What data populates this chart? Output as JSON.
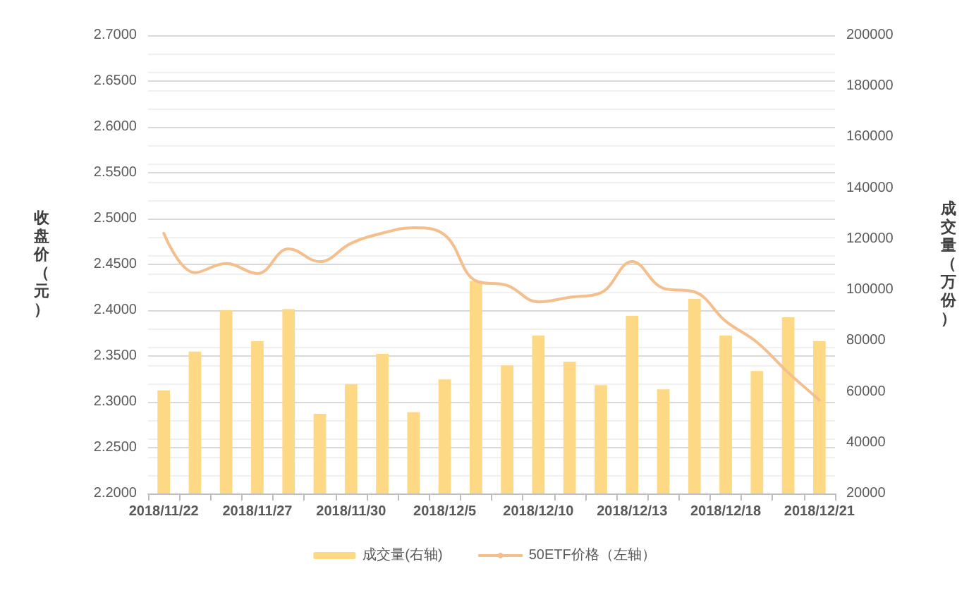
{
  "chart_data": {
    "type": "bar",
    "ylabel": "收盘价（元）",
    "y2label": "成交量（万份）",
    "categories": [
      "2018/11/22",
      null,
      null,
      "2018/11/27",
      null,
      null,
      "2018/11/30",
      null,
      null,
      "2018/12/5",
      null,
      null,
      "2018/12/10",
      null,
      null,
      "2018/12/13",
      null,
      null,
      "2018/12/18",
      null,
      null,
      "2018/12/21"
    ],
    "series": [
      {
        "name": "成交量(右轴)",
        "axis": "y2",
        "color": "#fdd985",
        "values": [
          60500,
          75700,
          92000,
          79800,
          92400,
          51300,
          63000,
          74800,
          52000,
          64800,
          103500,
          70300,
          82000,
          71800,
          62600,
          89800,
          60900,
          96400,
          82000,
          68100,
          89200,
          79800
        ]
      },
      {
        "name": "50ETF价格（左轴）",
        "type": "line",
        "axis": "y",
        "color": "#f4bf8c",
        "values": [
          2.484,
          2.441,
          2.451,
          2.44,
          2.467,
          2.453,
          2.473,
          2.484,
          2.49,
          2.482,
          2.432,
          2.427,
          2.409,
          2.414,
          2.419,
          2.453,
          2.424,
          2.42,
          2.388,
          2.365,
          2.332,
          2.302
        ]
      }
    ],
    "ylim": [
      2.2,
      2.7
    ],
    "yticks": [
      {
        "value": 2.2,
        "label": "2.2000"
      },
      {
        "value": 2.25,
        "label": "2.2500"
      },
      {
        "value": 2.3,
        "label": "2.3000"
      },
      {
        "value": 2.35,
        "label": "2.3500"
      },
      {
        "value": 2.4,
        "label": "2.4000"
      },
      {
        "value": 2.45,
        "label": "2.4500"
      },
      {
        "value": 2.5,
        "label": "2.5000"
      },
      {
        "value": 2.55,
        "label": "2.5500"
      },
      {
        "value": 2.6,
        "label": "2.6000"
      },
      {
        "value": 2.65,
        "label": "2.6500"
      },
      {
        "value": 2.7,
        "label": "2.7000"
      }
    ],
    "y2lim": [
      20000,
      200000
    ],
    "y2ticks": [
      20000,
      40000,
      60000,
      80000,
      100000,
      120000,
      140000,
      160000,
      180000,
      200000
    ],
    "grid": "y",
    "legend": "bottom",
    "marker": "none",
    "line_style": "solid"
  }
}
